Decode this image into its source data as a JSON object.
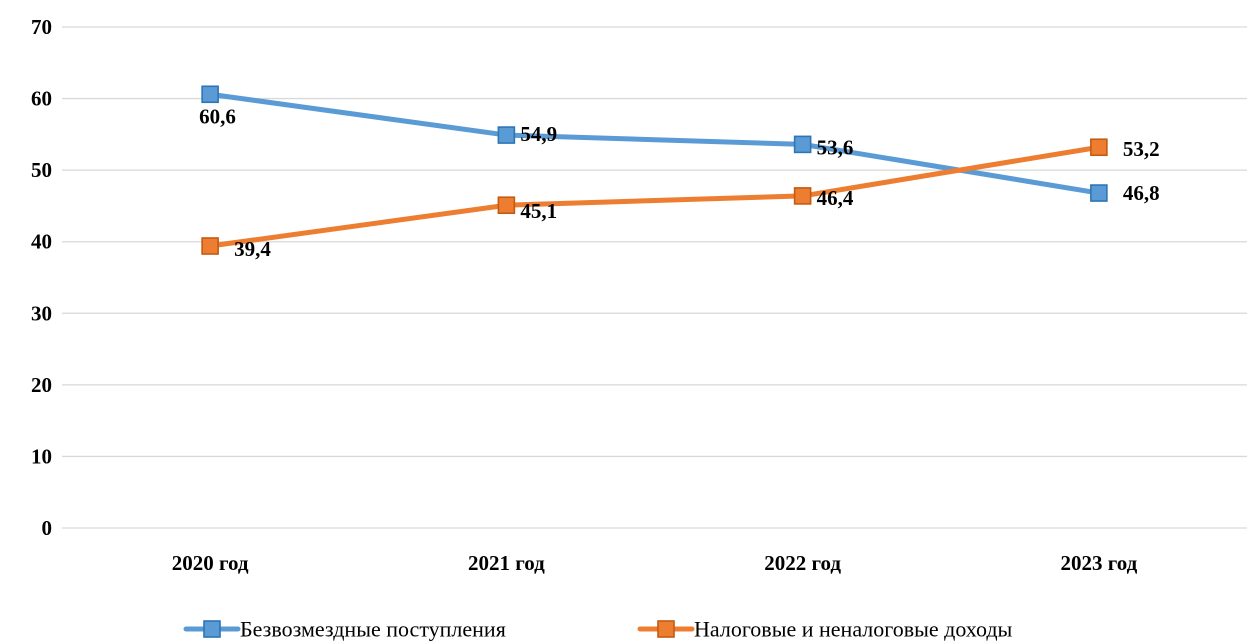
{
  "chart_data": {
    "type": "line",
    "title": "",
    "xlabel": "",
    "ylabel": "",
    "categories": [
      "2020 год",
      "2021 год",
      "2022 год",
      "2023 год"
    ],
    "ylim": [
      0,
      70
    ],
    "yticks": [
      "0",
      "10",
      "20",
      "30",
      "40",
      "50",
      "60",
      "70"
    ],
    "grid": true,
    "legend_position": "bottom",
    "series": [
      {
        "name": "Безвозмездные поступления",
        "values": [
          60.6,
          54.9,
          53.6,
          46.8
        ],
        "labels": [
          "60,6",
          "54,9",
          "53,6",
          "46,8"
        ],
        "color": "#5b9bd5",
        "marker_color": "#5b9bd5",
        "marker_edge": "#2e75b6",
        "marker": "square"
      },
      {
        "name": "Налоговые и неналоговые доходы",
        "values": [
          39.4,
          45.1,
          46.4,
          53.2
        ],
        "labels": [
          "39,4",
          "45,1",
          "46,4",
          "53,2"
        ],
        "color": "#ed7d31",
        "marker_color": "#ed7d31",
        "marker_edge": "#c55a11",
        "marker": "square"
      }
    ]
  }
}
